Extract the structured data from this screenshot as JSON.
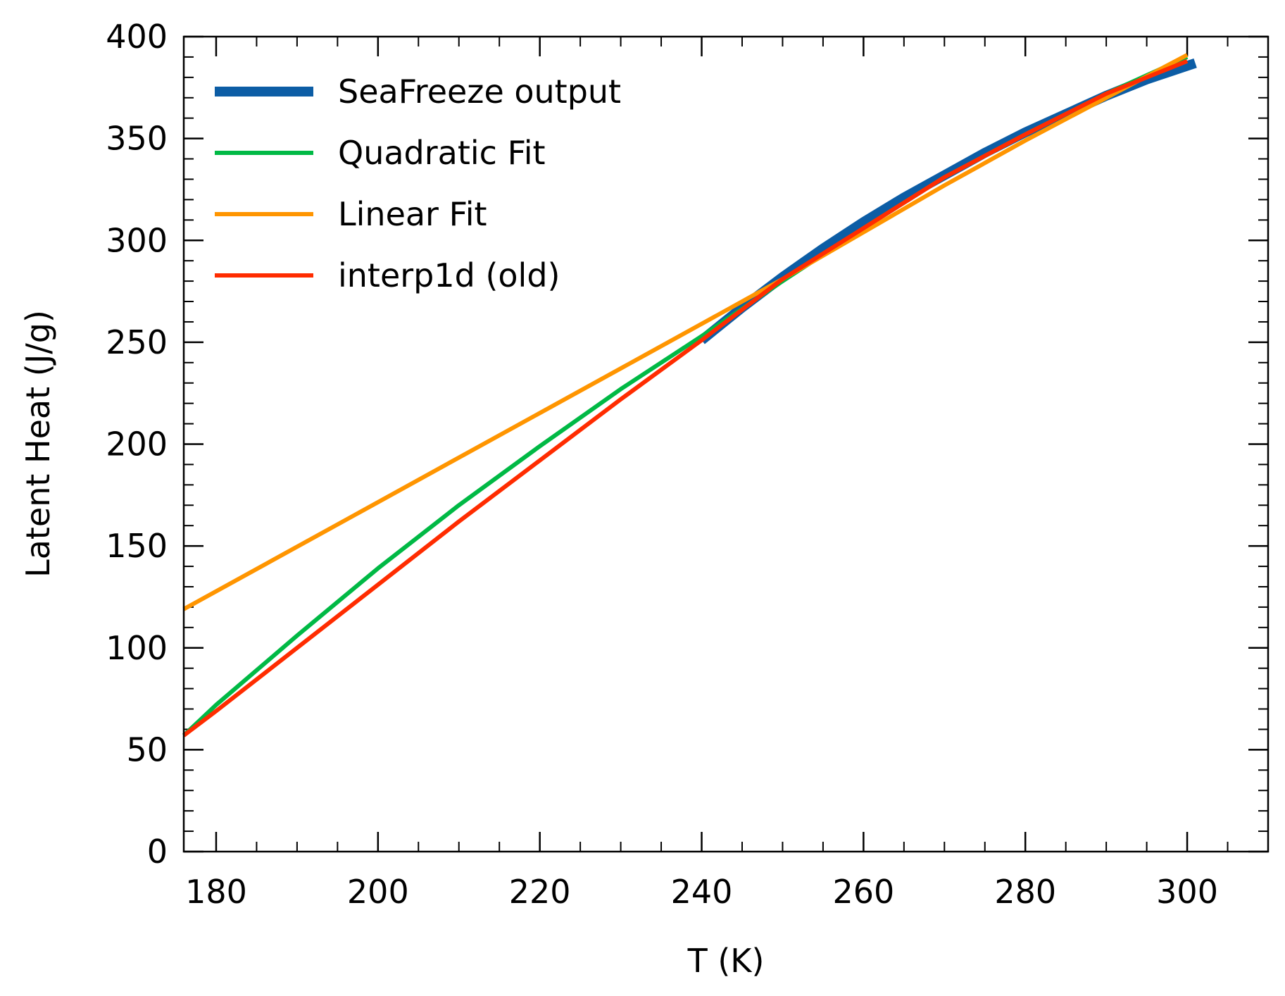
{
  "chart_data": {
    "type": "line",
    "xlabel": "T (K)",
    "ylabel": "Latent Heat (J/g)",
    "xlim": [
      176,
      310
    ],
    "ylim": [
      0,
      400
    ],
    "xticks": [
      180,
      200,
      220,
      240,
      260,
      280,
      300
    ],
    "yticks": [
      0,
      50,
      100,
      150,
      200,
      250,
      300,
      350,
      400
    ],
    "x_minor_step": 5,
    "y_minor_step": 10,
    "grid": false,
    "legend_position": "top-left",
    "series": [
      {
        "name": "SeaFreeze output",
        "color": "#0c5da5",
        "x": [
          240,
          245,
          250,
          255,
          260,
          265,
          270,
          275,
          280,
          285,
          290,
          295,
          301
        ],
        "y": [
          251,
          267,
          282,
          296,
          309,
          321,
          332,
          343,
          353,
          362,
          371,
          379,
          387
        ]
      },
      {
        "name": "Quadratic Fit",
        "color": "#00b945",
        "x": [
          176,
          180,
          190,
          200,
          210,
          220,
          230,
          240,
          250,
          260,
          270,
          280,
          290,
          300
        ],
        "y": [
          57,
          72,
          106,
          139,
          170,
          199,
          227,
          253,
          280,
          306,
          331,
          352,
          372,
          390
        ]
      },
      {
        "name": "Linear Fit",
        "color": "#ff9500",
        "x": [
          176,
          240,
          250,
          260,
          270,
          280,
          290,
          300
        ],
        "y": [
          119,
          259,
          281,
          304,
          327,
          349,
          370,
          391
        ]
      },
      {
        "name": "interp1d (old)",
        "color": "#ff2c00",
        "x": [
          176,
          180,
          190,
          200,
          210,
          220,
          230,
          240,
          250,
          260,
          270,
          280,
          290,
          300
        ],
        "y": [
          57,
          69,
          100,
          131,
          162,
          192,
          222,
          251,
          281,
          306,
          331,
          352,
          372,
          388
        ]
      }
    ]
  }
}
